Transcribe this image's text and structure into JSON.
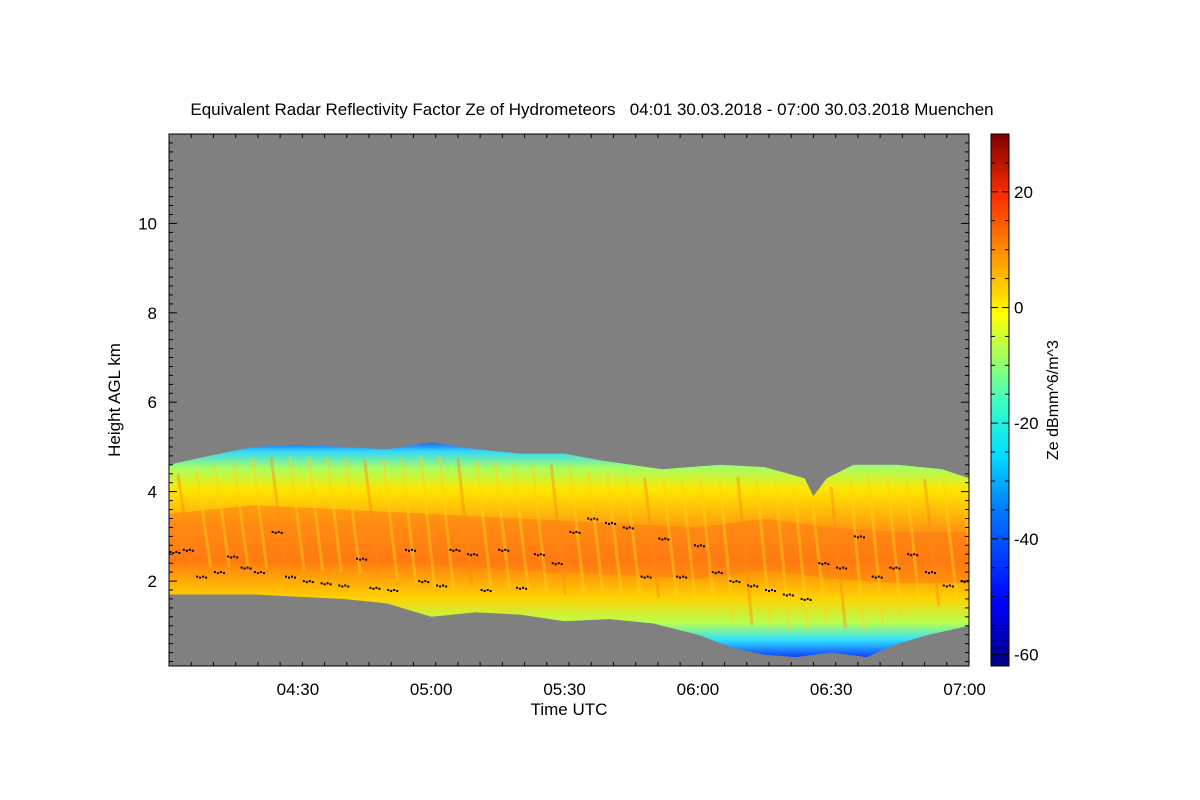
{
  "chart_data": {
    "type": "heatmap",
    "title": "Equivalent Radar Reflectivity Factor Ze of Hydrometeors   04:01 30.03.2018 - 07:00 30.03.2018 Muenchen",
    "xlabel": "Time UTC",
    "ylabel": "Height AGL km",
    "x_ticks": [
      "04:30",
      "05:00",
      "05:30",
      "06:00",
      "06:30",
      "07:00"
    ],
    "x_tick_minutes": [
      270,
      300,
      330,
      360,
      390,
      420
    ],
    "xlim_minutes": [
      241,
      421
    ],
    "y_ticks": [
      2,
      4,
      6,
      8,
      10
    ],
    "ylim": [
      0.1,
      12.0
    ],
    "colorbar": {
      "label": "Ze dBmm^6/m^3",
      "ticks": [
        20,
        0,
        -20,
        -40,
        -60
      ],
      "range": [
        -62,
        30
      ]
    },
    "echo_top_km": [
      [
        241,
        4.6
      ],
      [
        250,
        4.8
      ],
      [
        260,
        5.0
      ],
      [
        270,
        5.05
      ],
      [
        280,
        5.0
      ],
      [
        290,
        4.95
      ],
      [
        300,
        5.1
      ],
      [
        310,
        4.95
      ],
      [
        320,
        4.85
      ],
      [
        330,
        4.85
      ],
      [
        338,
        4.7
      ],
      [
        345,
        4.6
      ],
      [
        352,
        4.5
      ],
      [
        358,
        4.55
      ],
      [
        365,
        4.6
      ],
      [
        375,
        4.55
      ],
      [
        384,
        4.3
      ],
      [
        386,
        3.9
      ],
      [
        389,
        4.3
      ],
      [
        395,
        4.6
      ],
      [
        405,
        4.6
      ],
      [
        415,
        4.5
      ],
      [
        421,
        4.3
      ]
    ],
    "echo_base_km": [
      [
        241,
        1.7
      ],
      [
        250,
        1.7
      ],
      [
        260,
        1.7
      ],
      [
        270,
        1.65
      ],
      [
        280,
        1.6
      ],
      [
        290,
        1.5
      ],
      [
        300,
        1.2
      ],
      [
        310,
        1.3
      ],
      [
        320,
        1.25
      ],
      [
        330,
        1.1
      ],
      [
        340,
        1.15
      ],
      [
        350,
        1.05
      ],
      [
        360,
        0.8
      ],
      [
        368,
        0.5
      ],
      [
        375,
        0.35
      ],
      [
        382,
        0.3
      ],
      [
        390,
        0.4
      ],
      [
        398,
        0.3
      ],
      [
        405,
        0.6
      ],
      [
        412,
        0.8
      ],
      [
        421,
        1.0
      ]
    ],
    "max_reflectivity_band_km": [
      [
        241,
        2.9
      ],
      [
        260,
        3.1
      ],
      [
        280,
        3.0
      ],
      [
        300,
        2.9
      ],
      [
        320,
        2.8
      ],
      [
        340,
        2.7
      ],
      [
        360,
        2.6
      ],
      [
        375,
        2.8
      ],
      [
        390,
        2.6
      ],
      [
        405,
        2.5
      ],
      [
        421,
        2.5
      ]
    ],
    "melting_layer_points_km": [
      [
        242,
        2.65
      ],
      [
        245,
        2.7
      ],
      [
        248,
        2.1
      ],
      [
        252,
        2.2
      ],
      [
        255,
        2.55
      ],
      [
        258,
        2.3
      ],
      [
        261,
        2.2
      ],
      [
        265,
        3.1
      ],
      [
        268,
        2.1
      ],
      [
        272,
        2.0
      ],
      [
        276,
        1.95
      ],
      [
        280,
        1.9
      ],
      [
        284,
        2.5
      ],
      [
        287,
        1.85
      ],
      [
        291,
        1.8
      ],
      [
        295,
        2.7
      ],
      [
        298,
        2.0
      ],
      [
        302,
        1.9
      ],
      [
        305,
        2.7
      ],
      [
        309,
        2.6
      ],
      [
        312,
        1.8
      ],
      [
        316,
        2.7
      ],
      [
        320,
        1.85
      ],
      [
        324,
        2.6
      ],
      [
        328,
        2.4
      ],
      [
        332,
        3.1
      ],
      [
        336,
        3.4
      ],
      [
        340,
        3.3
      ],
      [
        344,
        3.2
      ],
      [
        348,
        2.1
      ],
      [
        352,
        2.95
      ],
      [
        356,
        2.1
      ],
      [
        360,
        2.8
      ],
      [
        364,
        2.2
      ],
      [
        368,
        2.0
      ],
      [
        372,
        1.9
      ],
      [
        376,
        1.8
      ],
      [
        380,
        1.7
      ],
      [
        384,
        1.6
      ],
      [
        388,
        2.4
      ],
      [
        392,
        2.3
      ],
      [
        396,
        3.0
      ],
      [
        400,
        2.1
      ],
      [
        404,
        2.3
      ],
      [
        408,
        2.6
      ],
      [
        412,
        2.2
      ],
      [
        416,
        1.9
      ],
      [
        420,
        2.0
      ]
    ]
  }
}
